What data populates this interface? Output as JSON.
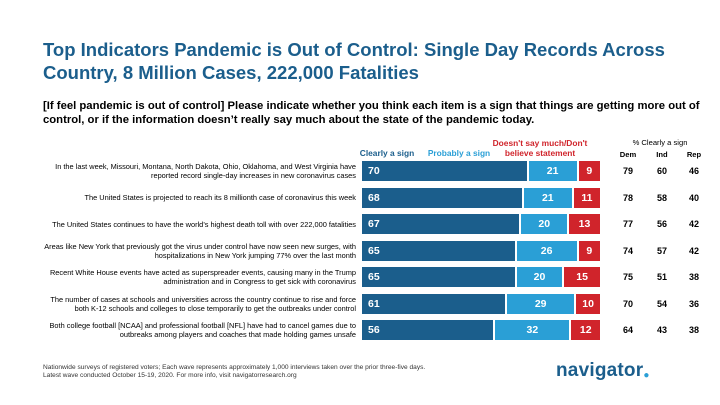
{
  "title": "Top Indicators Pandemic is Out of Control: Single Day Records Across Country, 8 Million Cases, 222,000 Fatalities",
  "subtitle": "[If feel pandemic is out of control] Please indicate whether you think each item is a sign that things are getting more out of control, or if the information doesn’t really say much about the state of the pandemic today.",
  "pct_clearly_header": "% Clearly a sign",
  "footnote": {
    "line1": "Nationwide surveys of registered voters; Each wave represents approximately 1,000 interviews taken over the prior three-five days.",
    "line2": "Latest wave conducted October 15-19, 2020. For more info, visit navigatorresearch.org"
  },
  "logo": {
    "text": "navigator",
    "dot": "●"
  },
  "colors": {
    "clearly": "#1b5e8c",
    "probably": "#2a9fd6",
    "doesnt": "#d0242b"
  },
  "chart_data": {
    "type": "bar",
    "orientation": "horizontal",
    "stacked": true,
    "series": [
      {
        "name": "Clearly a sign",
        "values": [
          70,
          68,
          67,
          65,
          65,
          61,
          56
        ]
      },
      {
        "name": "Probably a sign",
        "values": [
          21,
          21,
          20,
          26,
          20,
          29,
          32
        ]
      },
      {
        "name": "Doesn't say much/Don't believe statement",
        "values": [
          9,
          11,
          13,
          9,
          15,
          10,
          12
        ]
      }
    ],
    "categories": [
      "In the last week, Missouri, Montana, North Dakota, Ohio, Oklahoma, and West Virginia have reported record single-day increases in new coronavirus cases",
      "The United States is projected to reach its 8 millionth case of coronavirus this week",
      "The United States continues to have the world’s highest death toll with over 222,000 fatalities",
      "Areas like New York that previously got the virus under control have now seen new surges, with hospitalizations in New York jumping 77% over the last month",
      "Recent White House events have acted as superspreader events, causing many in the Trump administration and in Congress to get sick with coronavirus",
      "The number of cases at schools and universities across the country continue to rise and force both K-12 schools and colleges to close temporarily to get the outbreaks under control",
      "Both college football [NCAA] and professional football [NFL] have had to cancel games due to outbreaks among players and coaches that made holding games unsafe"
    ],
    "party_breakdown": {
      "headers": [
        "Dem",
        "Ind",
        "Rep"
      ],
      "values": [
        [
          79,
          60,
          46
        ],
        [
          78,
          58,
          40
        ],
        [
          77,
          56,
          42
        ],
        [
          74,
          57,
          42
        ],
        [
          75,
          51,
          38
        ],
        [
          70,
          54,
          36
        ],
        [
          64,
          43,
          38
        ]
      ]
    },
    "xlim": [
      0,
      100
    ]
  }
}
